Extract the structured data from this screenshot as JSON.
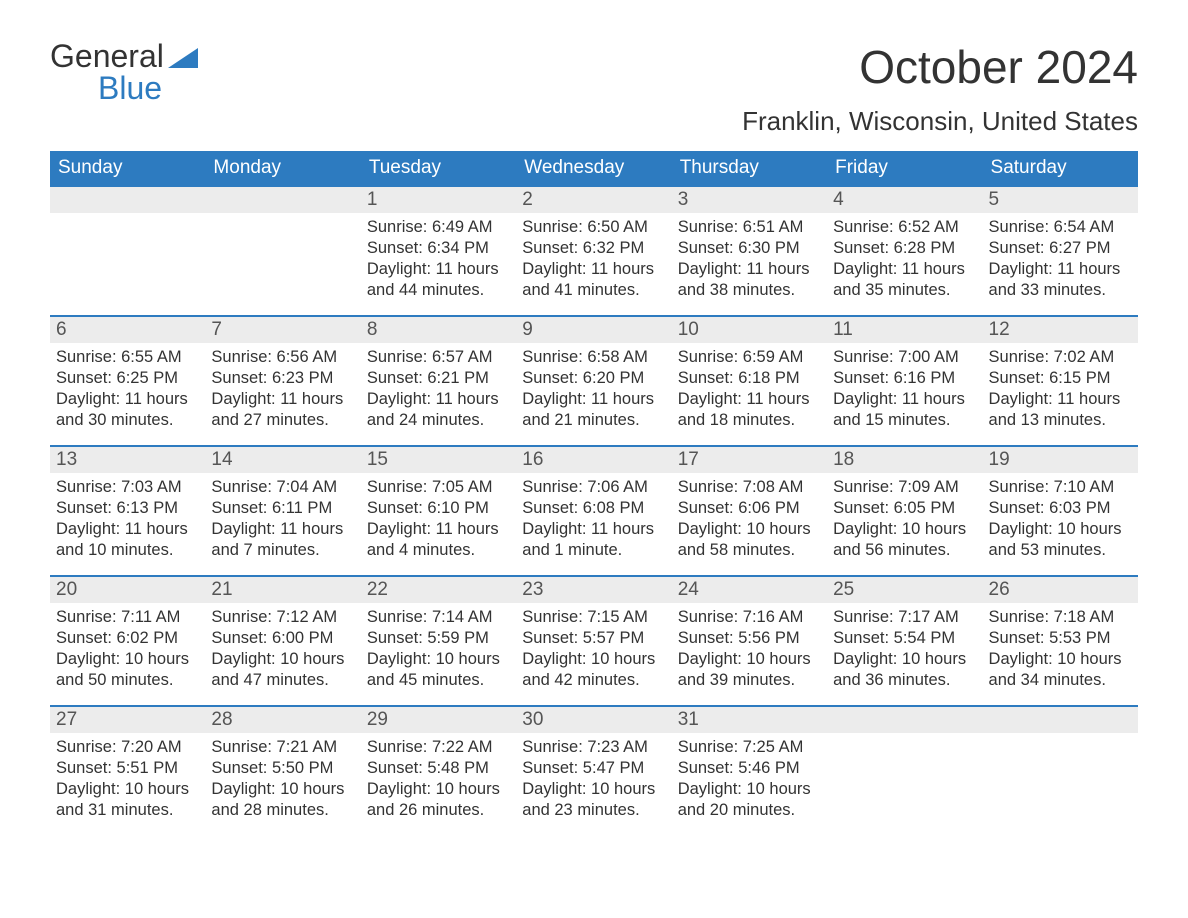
{
  "brand": {
    "word1": "General",
    "word2": "Blue",
    "accent_color": "#2d7bc0"
  },
  "title": "October 2024",
  "location": "Franklin, Wisconsin, United States",
  "colors": {
    "header_bg": "#2d7bc0",
    "header_text": "#ffffff",
    "daynum_bg": "#ececec",
    "text": "#333333",
    "row_border": "#2d7bc0",
    "page_bg": "#ffffff"
  },
  "weekdays": [
    "Sunday",
    "Monday",
    "Tuesday",
    "Wednesday",
    "Thursday",
    "Friday",
    "Saturday"
  ],
  "weeks": [
    [
      {
        "n": "",
        "sunrise": "",
        "sunset": "",
        "daylight": ""
      },
      {
        "n": "",
        "sunrise": "",
        "sunset": "",
        "daylight": ""
      },
      {
        "n": "1",
        "sunrise": "Sunrise: 6:49 AM",
        "sunset": "Sunset: 6:34 PM",
        "daylight": "Daylight: 11 hours and 44 minutes."
      },
      {
        "n": "2",
        "sunrise": "Sunrise: 6:50 AM",
        "sunset": "Sunset: 6:32 PM",
        "daylight": "Daylight: 11 hours and 41 minutes."
      },
      {
        "n": "3",
        "sunrise": "Sunrise: 6:51 AM",
        "sunset": "Sunset: 6:30 PM",
        "daylight": "Daylight: 11 hours and 38 minutes."
      },
      {
        "n": "4",
        "sunrise": "Sunrise: 6:52 AM",
        "sunset": "Sunset: 6:28 PM",
        "daylight": "Daylight: 11 hours and 35 minutes."
      },
      {
        "n": "5",
        "sunrise": "Sunrise: 6:54 AM",
        "sunset": "Sunset: 6:27 PM",
        "daylight": "Daylight: 11 hours and 33 minutes."
      }
    ],
    [
      {
        "n": "6",
        "sunrise": "Sunrise: 6:55 AM",
        "sunset": "Sunset: 6:25 PM",
        "daylight": "Daylight: 11 hours and 30 minutes."
      },
      {
        "n": "7",
        "sunrise": "Sunrise: 6:56 AM",
        "sunset": "Sunset: 6:23 PM",
        "daylight": "Daylight: 11 hours and 27 minutes."
      },
      {
        "n": "8",
        "sunrise": "Sunrise: 6:57 AM",
        "sunset": "Sunset: 6:21 PM",
        "daylight": "Daylight: 11 hours and 24 minutes."
      },
      {
        "n": "9",
        "sunrise": "Sunrise: 6:58 AM",
        "sunset": "Sunset: 6:20 PM",
        "daylight": "Daylight: 11 hours and 21 minutes."
      },
      {
        "n": "10",
        "sunrise": "Sunrise: 6:59 AM",
        "sunset": "Sunset: 6:18 PM",
        "daylight": "Daylight: 11 hours and 18 minutes."
      },
      {
        "n": "11",
        "sunrise": "Sunrise: 7:00 AM",
        "sunset": "Sunset: 6:16 PM",
        "daylight": "Daylight: 11 hours and 15 minutes."
      },
      {
        "n": "12",
        "sunrise": "Sunrise: 7:02 AM",
        "sunset": "Sunset: 6:15 PM",
        "daylight": "Daylight: 11 hours and 13 minutes."
      }
    ],
    [
      {
        "n": "13",
        "sunrise": "Sunrise: 7:03 AM",
        "sunset": "Sunset: 6:13 PM",
        "daylight": "Daylight: 11 hours and 10 minutes."
      },
      {
        "n": "14",
        "sunrise": "Sunrise: 7:04 AM",
        "sunset": "Sunset: 6:11 PM",
        "daylight": "Daylight: 11 hours and 7 minutes."
      },
      {
        "n": "15",
        "sunrise": "Sunrise: 7:05 AM",
        "sunset": "Sunset: 6:10 PM",
        "daylight": "Daylight: 11 hours and 4 minutes."
      },
      {
        "n": "16",
        "sunrise": "Sunrise: 7:06 AM",
        "sunset": "Sunset: 6:08 PM",
        "daylight": "Daylight: 11 hours and 1 minute."
      },
      {
        "n": "17",
        "sunrise": "Sunrise: 7:08 AM",
        "sunset": "Sunset: 6:06 PM",
        "daylight": "Daylight: 10 hours and 58 minutes."
      },
      {
        "n": "18",
        "sunrise": "Sunrise: 7:09 AM",
        "sunset": "Sunset: 6:05 PM",
        "daylight": "Daylight: 10 hours and 56 minutes."
      },
      {
        "n": "19",
        "sunrise": "Sunrise: 7:10 AM",
        "sunset": "Sunset: 6:03 PM",
        "daylight": "Daylight: 10 hours and 53 minutes."
      }
    ],
    [
      {
        "n": "20",
        "sunrise": "Sunrise: 7:11 AM",
        "sunset": "Sunset: 6:02 PM",
        "daylight": "Daylight: 10 hours and 50 minutes."
      },
      {
        "n": "21",
        "sunrise": "Sunrise: 7:12 AM",
        "sunset": "Sunset: 6:00 PM",
        "daylight": "Daylight: 10 hours and 47 minutes."
      },
      {
        "n": "22",
        "sunrise": "Sunrise: 7:14 AM",
        "sunset": "Sunset: 5:59 PM",
        "daylight": "Daylight: 10 hours and 45 minutes."
      },
      {
        "n": "23",
        "sunrise": "Sunrise: 7:15 AM",
        "sunset": "Sunset: 5:57 PM",
        "daylight": "Daylight: 10 hours and 42 minutes."
      },
      {
        "n": "24",
        "sunrise": "Sunrise: 7:16 AM",
        "sunset": "Sunset: 5:56 PM",
        "daylight": "Daylight: 10 hours and 39 minutes."
      },
      {
        "n": "25",
        "sunrise": "Sunrise: 7:17 AM",
        "sunset": "Sunset: 5:54 PM",
        "daylight": "Daylight: 10 hours and 36 minutes."
      },
      {
        "n": "26",
        "sunrise": "Sunrise: 7:18 AM",
        "sunset": "Sunset: 5:53 PM",
        "daylight": "Daylight: 10 hours and 34 minutes."
      }
    ],
    [
      {
        "n": "27",
        "sunrise": "Sunrise: 7:20 AM",
        "sunset": "Sunset: 5:51 PM",
        "daylight": "Daylight: 10 hours and 31 minutes."
      },
      {
        "n": "28",
        "sunrise": "Sunrise: 7:21 AM",
        "sunset": "Sunset: 5:50 PM",
        "daylight": "Daylight: 10 hours and 28 minutes."
      },
      {
        "n": "29",
        "sunrise": "Sunrise: 7:22 AM",
        "sunset": "Sunset: 5:48 PM",
        "daylight": "Daylight: 10 hours and 26 minutes."
      },
      {
        "n": "30",
        "sunrise": "Sunrise: 7:23 AM",
        "sunset": "Sunset: 5:47 PM",
        "daylight": "Daylight: 10 hours and 23 minutes."
      },
      {
        "n": "31",
        "sunrise": "Sunrise: 7:25 AM",
        "sunset": "Sunset: 5:46 PM",
        "daylight": "Daylight: 10 hours and 20 minutes."
      },
      {
        "n": "",
        "sunrise": "",
        "sunset": "",
        "daylight": ""
      },
      {
        "n": "",
        "sunrise": "",
        "sunset": "",
        "daylight": ""
      }
    ]
  ]
}
